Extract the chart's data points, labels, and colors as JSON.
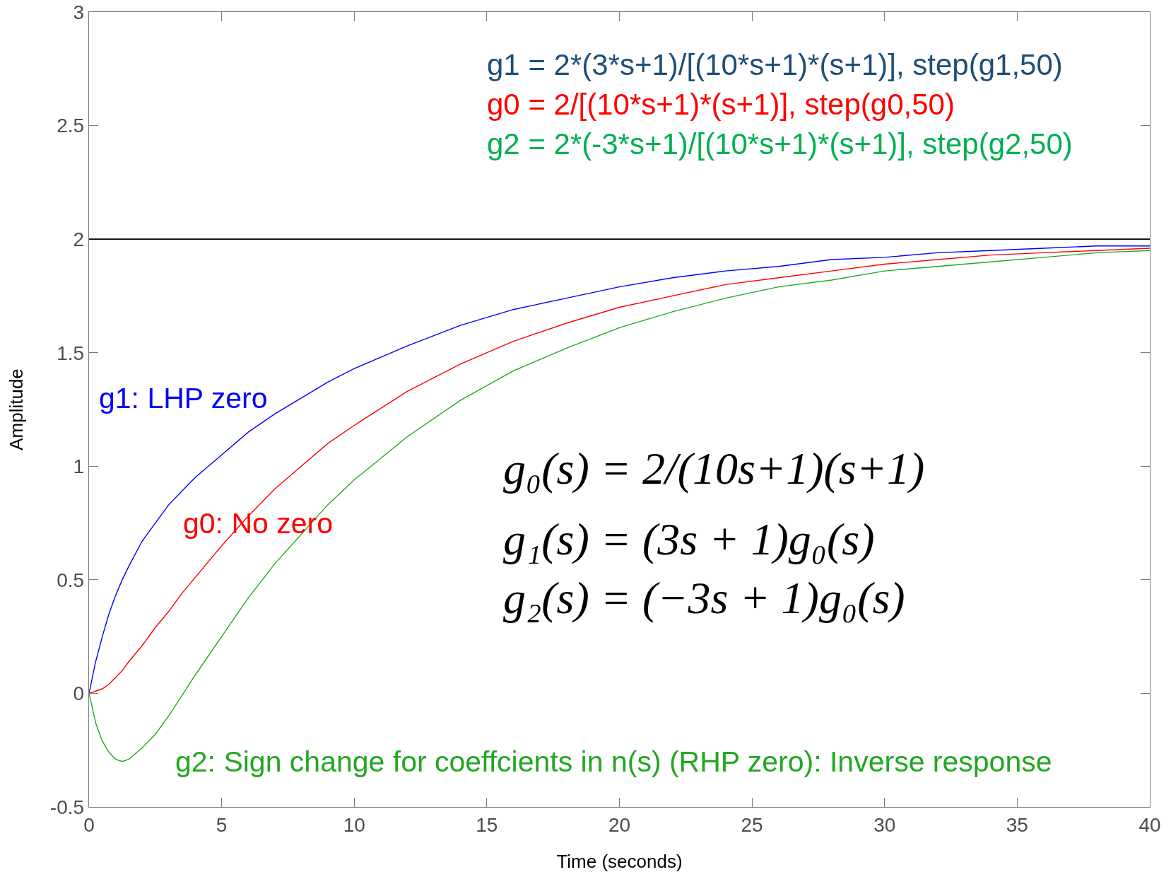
{
  "chart_data": {
    "type": "line",
    "xlabel": "Time (seconds)",
    "ylabel": "Amplitude",
    "x": [
      0,
      0.25,
      0.5,
      0.75,
      1,
      1.25,
      1.5,
      2,
      2.5,
      3,
      3.5,
      4,
      5,
      6,
      7,
      8,
      9,
      10,
      12,
      14,
      16,
      18,
      20,
      22,
      24,
      26,
      28,
      30,
      32,
      34,
      36,
      38,
      40
    ],
    "xlim": [
      0,
      40
    ],
    "xticks": [
      0,
      5,
      10,
      15,
      20,
      25,
      30,
      35,
      40
    ],
    "ylim": [
      -0.5,
      3
    ],
    "yticks": [
      -0.5,
      0,
      0.5,
      1,
      1.5,
      2,
      2.5,
      3
    ],
    "series": [
      {
        "name": "g1: LHP zero",
        "color": "#0000ff",
        "values": [
          0,
          0.14,
          0.25,
          0.35,
          0.43,
          0.5,
          0.56,
          0.67,
          0.75,
          0.83,
          0.89,
          0.95,
          1.05,
          1.15,
          1.23,
          1.3,
          1.37,
          1.43,
          1.53,
          1.62,
          1.69,
          1.74,
          1.79,
          1.83,
          1.86,
          1.88,
          1.91,
          1.92,
          1.94,
          1.95,
          1.96,
          1.97,
          1.97
        ]
      },
      {
        "name": "g0: No zero",
        "color": "#ff0000",
        "values": [
          0,
          0.01,
          0.02,
          0.04,
          0.07,
          0.1,
          0.14,
          0.21,
          0.29,
          0.36,
          0.44,
          0.51,
          0.65,
          0.78,
          0.9,
          1,
          1.1,
          1.18,
          1.33,
          1.45,
          1.55,
          1.63,
          1.7,
          1.75,
          1.8,
          1.83,
          1.86,
          1.89,
          1.91,
          1.93,
          1.94,
          1.95,
          1.96
        ]
      },
      {
        "name": "g2: Sign change for coeffcients in n(s) (RHP zero): Inverse response",
        "color": "#22a722",
        "values": [
          0,
          -0.13,
          -0.21,
          -0.26,
          -0.29,
          -0.3,
          -0.29,
          -0.24,
          -0.18,
          -0.1,
          -0.01,
          0.08,
          0.25,
          0.42,
          0.57,
          0.7,
          0.83,
          0.94,
          1.13,
          1.29,
          1.42,
          1.52,
          1.61,
          1.68,
          1.74,
          1.79,
          1.82,
          1.86,
          1.88,
          1.9,
          1.92,
          1.94,
          1.95
        ]
      }
    ],
    "ref_lines": [
      {
        "axis": "y",
        "value": 2,
        "color": "#000000"
      }
    ],
    "annotations": [
      "g1 = 2*(3*s+1)/[(10*s+1)*(s+1)], step(g1,50)",
      "g0 = 2/[(10*s+1)*(s+1)], step(g0,50)",
      "g2 = 2*(-3*s+1)/[(10*s+1)*(s+1)], step(g2,50)",
      "g₀(s) = 2/(10s+1)(s+1)",
      "g₁(s) = (3s + 1)g₀(s)",
      "g₂(s) = (−3s + 1)g₀(s)"
    ]
  }
}
